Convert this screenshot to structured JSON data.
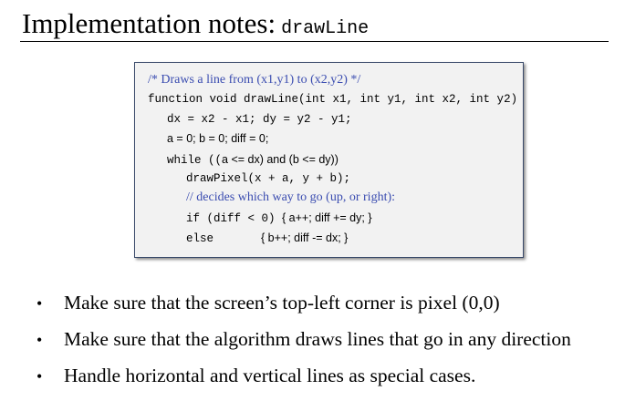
{
  "header": {
    "title_text": "Implementation notes:",
    "title_code": "drawLine"
  },
  "code": {
    "line1_comment": "/* Draws a line from (x1,y1) to (x2,y2)  */",
    "line2": "function void drawLine(int x1, int y1, int x2, int y2)",
    "line3": "dx = x2 - x1; dy = y2 - y1;",
    "line4": "a = 0; b = 0; diff = 0;",
    "line5_kw": "while ((",
    "line5_rest": "a <= dx) and (b <= dy))",
    "line6": "drawPixel(x + a, y + b);",
    "line7_comment": "// decides which way to go (up, or right):",
    "line8_if": "if (diff < 0) ",
    "line8_rest": "{ a++; diff += dy; }",
    "line9_else": "else",
    "line9_rest": "{ b++; diff -= dx; }"
  },
  "bullets": [
    "Make sure that the screen’s top-left corner is pixel (0,0)",
    "Make sure that the algorithm draws lines that go in any direction",
    "Handle horizontal and vertical lines as special cases."
  ],
  "bullet_symbol": "•"
}
